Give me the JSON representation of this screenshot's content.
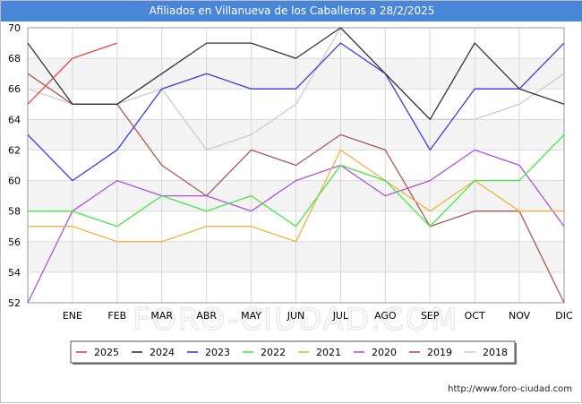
{
  "chart_data": {
    "type": "line",
    "title": "Afiliados en Villanueva de los Caballeros a 28/2/2025",
    "x_categories": [
      "",
      "ENE",
      "FEB",
      "MAR",
      "ABR",
      "MAY",
      "JUN",
      "JUL",
      "AGO",
      "SEP",
      "OCT",
      "NOV",
      "DIC"
    ],
    "ylim": [
      52,
      70
    ],
    "y_ticks": [
      52,
      54,
      56,
      58,
      60,
      62,
      64,
      66,
      68,
      70
    ],
    "grid": true,
    "legend_position": "bottom",
    "watermark": "FORO-CIUDAD.COM",
    "source": "http://www.foro-ciudad.com",
    "series": [
      {
        "name": "2025",
        "color": "#e8413f",
        "values": [
          65,
          68,
          69
        ]
      },
      {
        "name": "2024",
        "color": "#333333",
        "values": [
          69,
          65,
          65,
          67,
          69,
          69,
          68,
          70,
          67,
          64,
          69,
          66,
          65
        ]
      },
      {
        "name": "2023",
        "color": "#3a3adf",
        "values": [
          63,
          60,
          62,
          66,
          67,
          66,
          66,
          69,
          67,
          62,
          66,
          66,
          69
        ]
      },
      {
        "name": "2022",
        "color": "#44e844",
        "values": [
          58,
          58,
          57,
          59,
          58,
          59,
          57,
          61,
          60,
          57,
          60,
          60,
          63
        ]
      },
      {
        "name": "2021",
        "color": "#f5b13d",
        "values": [
          57,
          57,
          56,
          56,
          57,
          57,
          56,
          62,
          60,
          58,
          60,
          58,
          58
        ]
      },
      {
        "name": "2020",
        "color": "#b04fe0",
        "values": [
          52,
          58,
          60,
          59,
          59,
          58,
          60,
          61,
          59,
          60,
          62,
          61,
          57
        ]
      },
      {
        "name": "2019",
        "color": "#a85858",
        "values": [
          67,
          65,
          65,
          61,
          59,
          62,
          61,
          63,
          62,
          57,
          58,
          58,
          52
        ]
      },
      {
        "name": "2018",
        "color": "#cccccc",
        "values": [
          66,
          65,
          65,
          66,
          62,
          63,
          65,
          70,
          67,
          64,
          64,
          65,
          67
        ]
      }
    ]
  }
}
